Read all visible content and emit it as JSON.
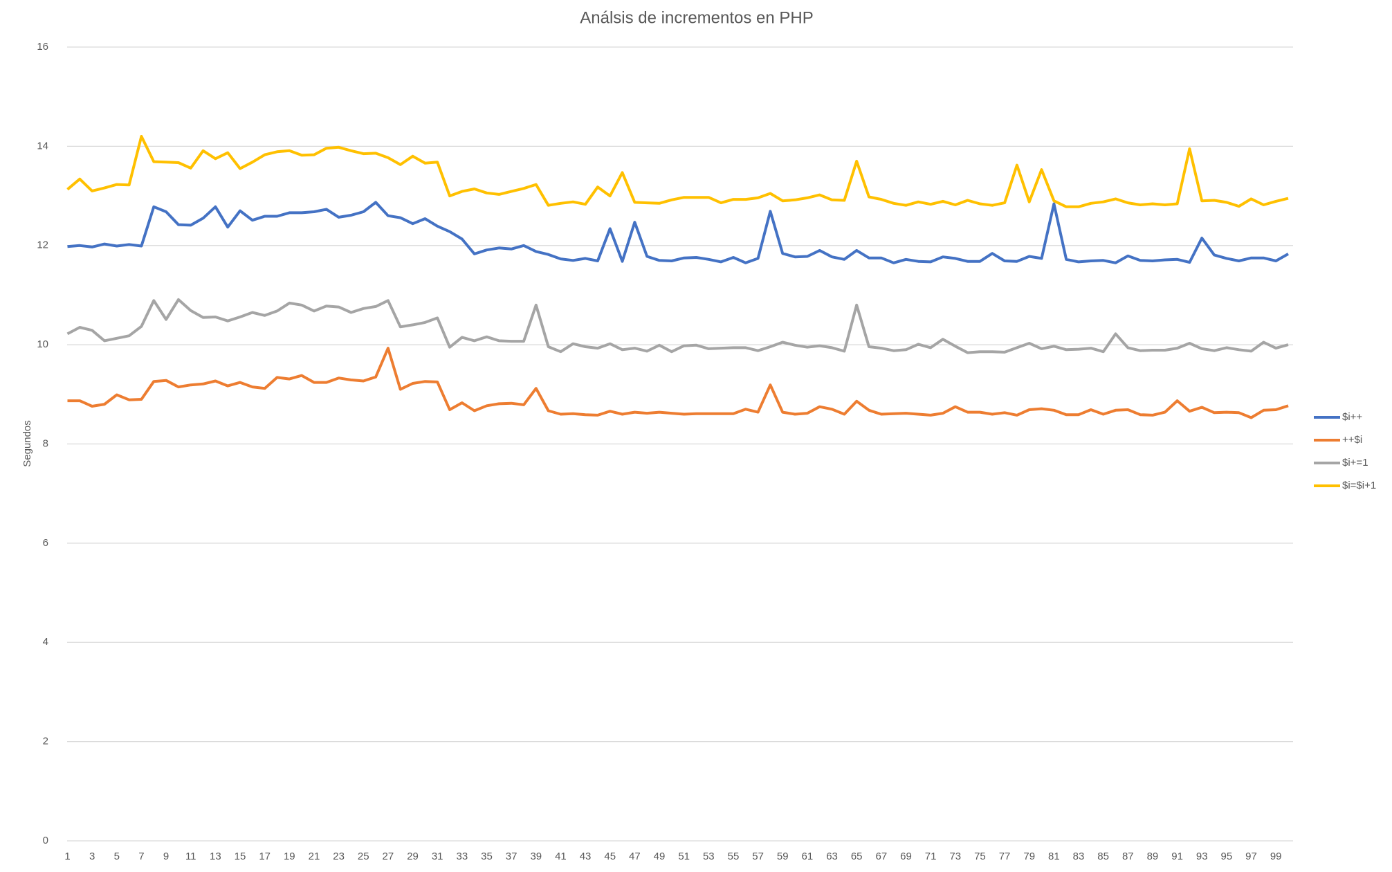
{
  "chart_data": {
    "type": "line",
    "title": "Análsis de incrementos en PHP",
    "y_label": "Segundos",
    "categories": [
      1,
      null,
      3,
      null,
      5,
      null,
      7,
      null,
      9,
      null,
      11,
      null,
      13,
      null,
      15,
      null,
      17,
      null,
      19,
      null,
      21,
      null,
      23,
      null,
      25,
      null,
      27,
      null,
      29,
      null,
      31,
      null,
      33,
      null,
      35,
      null,
      37,
      null,
      39,
      null,
      41,
      null,
      43,
      null,
      45,
      null,
      47,
      null,
      49,
      null,
      51,
      null,
      53,
      null,
      55,
      null,
      57,
      null,
      59,
      null,
      61,
      null,
      63,
      null,
      65,
      null,
      67,
      null,
      69,
      null,
      71,
      null,
      73,
      null,
      75,
      null,
      77,
      null,
      79,
      null,
      81,
      null,
      83,
      null,
      85,
      null,
      87,
      null,
      89,
      null,
      91,
      null,
      93,
      null,
      95,
      null,
      97,
      null,
      99,
      null
    ],
    "ylim": [
      0,
      16
    ],
    "yticks": [
      0,
      2,
      4,
      6,
      8,
      10,
      12,
      14,
      16
    ],
    "grid": true,
    "legend": "right",
    "series": [
      {
        "name": "$i++",
        "color": "#4472c4",
        "values": [
          11.98,
          12.0,
          11.97,
          12.03,
          11.99,
          12.02,
          11.99,
          12.78,
          12.68,
          12.42,
          12.41,
          12.55,
          12.78,
          12.37,
          12.7,
          12.51,
          12.59,
          12.59,
          12.66,
          12.66,
          12.68,
          12.73,
          12.57,
          12.61,
          12.68,
          12.87,
          12.6,
          12.56,
          12.44,
          12.54,
          12.39,
          12.28,
          12.13,
          11.83,
          11.91,
          11.95,
          11.93,
          12.0,
          11.88,
          11.82,
          11.73,
          11.7,
          11.74,
          11.69,
          12.34,
          11.68,
          12.47,
          11.78,
          11.7,
          11.69,
          11.75,
          11.76,
          11.72,
          11.67,
          11.76,
          11.65,
          11.74,
          12.69,
          11.84,
          11.77,
          11.78,
          11.9,
          11.77,
          11.72,
          11.9,
          11.75,
          11.75,
          11.65,
          11.72,
          11.68,
          11.67,
          11.77,
          11.74,
          11.68,
          11.68,
          11.84,
          11.69,
          11.68,
          11.78,
          11.74,
          12.84,
          11.72,
          11.67,
          11.69,
          11.7,
          11.65,
          11.79,
          11.7,
          11.69,
          11.71,
          11.72,
          11.66,
          12.15,
          11.81,
          11.74,
          11.69,
          11.75,
          11.75,
          11.69,
          11.83
        ]
      },
      {
        "name": "++$i",
        "color": "#ed7d31",
        "values": [
          8.87,
          8.87,
          8.76,
          8.8,
          8.99,
          8.89,
          8.9,
          9.26,
          9.28,
          9.15,
          9.19,
          9.21,
          9.27,
          9.17,
          9.24,
          9.15,
          9.12,
          9.34,
          9.31,
          9.38,
          9.24,
          9.24,
          9.33,
          9.29,
          9.27,
          9.35,
          9.93,
          9.1,
          9.22,
          9.26,
          9.25,
          8.69,
          8.83,
          8.67,
          8.77,
          8.81,
          8.82,
          8.79,
          9.12,
          8.67,
          8.6,
          8.61,
          8.59,
          8.58,
          8.66,
          8.6,
          8.64,
          8.62,
          8.64,
          8.62,
          8.6,
          8.61,
          8.61,
          8.61,
          8.61,
          8.7,
          8.64,
          9.19,
          8.64,
          8.6,
          8.62,
          8.75,
          8.7,
          8.6,
          8.86,
          8.68,
          8.6,
          8.61,
          8.62,
          8.6,
          8.58,
          8.62,
          8.75,
          8.64,
          8.64,
          8.6,
          8.63,
          8.58,
          8.69,
          8.71,
          8.68,
          8.59,
          8.59,
          8.69,
          8.6,
          8.68,
          8.69,
          8.59,
          8.58,
          8.64,
          8.87,
          8.66,
          8.74,
          8.63,
          8.64,
          8.63,
          8.53,
          8.68,
          8.69,
          8.77
        ]
      },
      {
        "name": "$i+=1",
        "color": "#a5a5a5",
        "values": [
          10.22,
          10.35,
          10.29,
          10.08,
          10.13,
          10.18,
          10.37,
          10.89,
          10.51,
          10.91,
          10.69,
          10.55,
          10.56,
          10.48,
          10.56,
          10.65,
          10.59,
          10.68,
          10.84,
          10.8,
          10.68,
          10.78,
          10.76,
          10.65,
          10.73,
          10.77,
          10.89,
          10.36,
          10.4,
          10.45,
          10.54,
          9.95,
          10.15,
          10.08,
          10.16,
          10.08,
          10.07,
          10.07,
          10.8,
          9.96,
          9.86,
          10.02,
          9.96,
          9.93,
          10.02,
          9.9,
          9.93,
          9.87,
          9.99,
          9.86,
          9.98,
          9.99,
          9.92,
          9.93,
          9.94,
          9.94,
          9.88,
          9.96,
          10.05,
          9.99,
          9.95,
          9.98,
          9.94,
          9.87,
          10.8,
          9.96,
          9.93,
          9.88,
          9.9,
          10.01,
          9.94,
          10.11,
          9.97,
          9.84,
          9.86,
          9.86,
          9.85,
          9.94,
          10.03,
          9.92,
          9.97,
          9.9,
          9.91,
          9.93,
          9.86,
          10.22,
          9.94,
          9.88,
          9.89,
          9.89,
          9.93,
          10.03,
          9.92,
          9.88,
          9.94,
          9.9,
          9.87,
          10.05,
          9.93,
          10.0
        ]
      },
      {
        "name": "$i=$i+1",
        "color": "#ffc000",
        "values": [
          13.13,
          13.34,
          13.1,
          13.16,
          13.23,
          13.22,
          14.2,
          13.69,
          13.68,
          13.67,
          13.56,
          13.91,
          13.75,
          13.87,
          13.55,
          13.68,
          13.83,
          13.89,
          13.91,
          13.82,
          13.83,
          13.96,
          13.98,
          13.91,
          13.85,
          13.86,
          13.77,
          13.63,
          13.8,
          13.66,
          13.68,
          13.0,
          13.09,
          13.14,
          13.06,
          13.03,
          13.09,
          13.15,
          13.23,
          12.81,
          12.85,
          12.88,
          12.83,
          13.18,
          13.0,
          13.47,
          12.87,
          12.86,
          12.85,
          12.92,
          12.97,
          12.97,
          12.97,
          12.86,
          12.93,
          12.93,
          12.96,
          13.05,
          12.9,
          12.92,
          12.96,
          13.02,
          12.92,
          12.91,
          13.7,
          12.98,
          12.93,
          12.85,
          12.81,
          12.88,
          12.83,
          12.89,
          12.82,
          12.91,
          12.84,
          12.81,
          12.86,
          13.62,
          12.88,
          13.53,
          12.9,
          12.78,
          12.78,
          12.85,
          12.88,
          12.94,
          12.86,
          12.82,
          12.84,
          12.82,
          12.84,
          13.95,
          12.9,
          12.91,
          12.87,
          12.79,
          12.94,
          12.82,
          12.89,
          12.95
        ]
      }
    ]
  }
}
